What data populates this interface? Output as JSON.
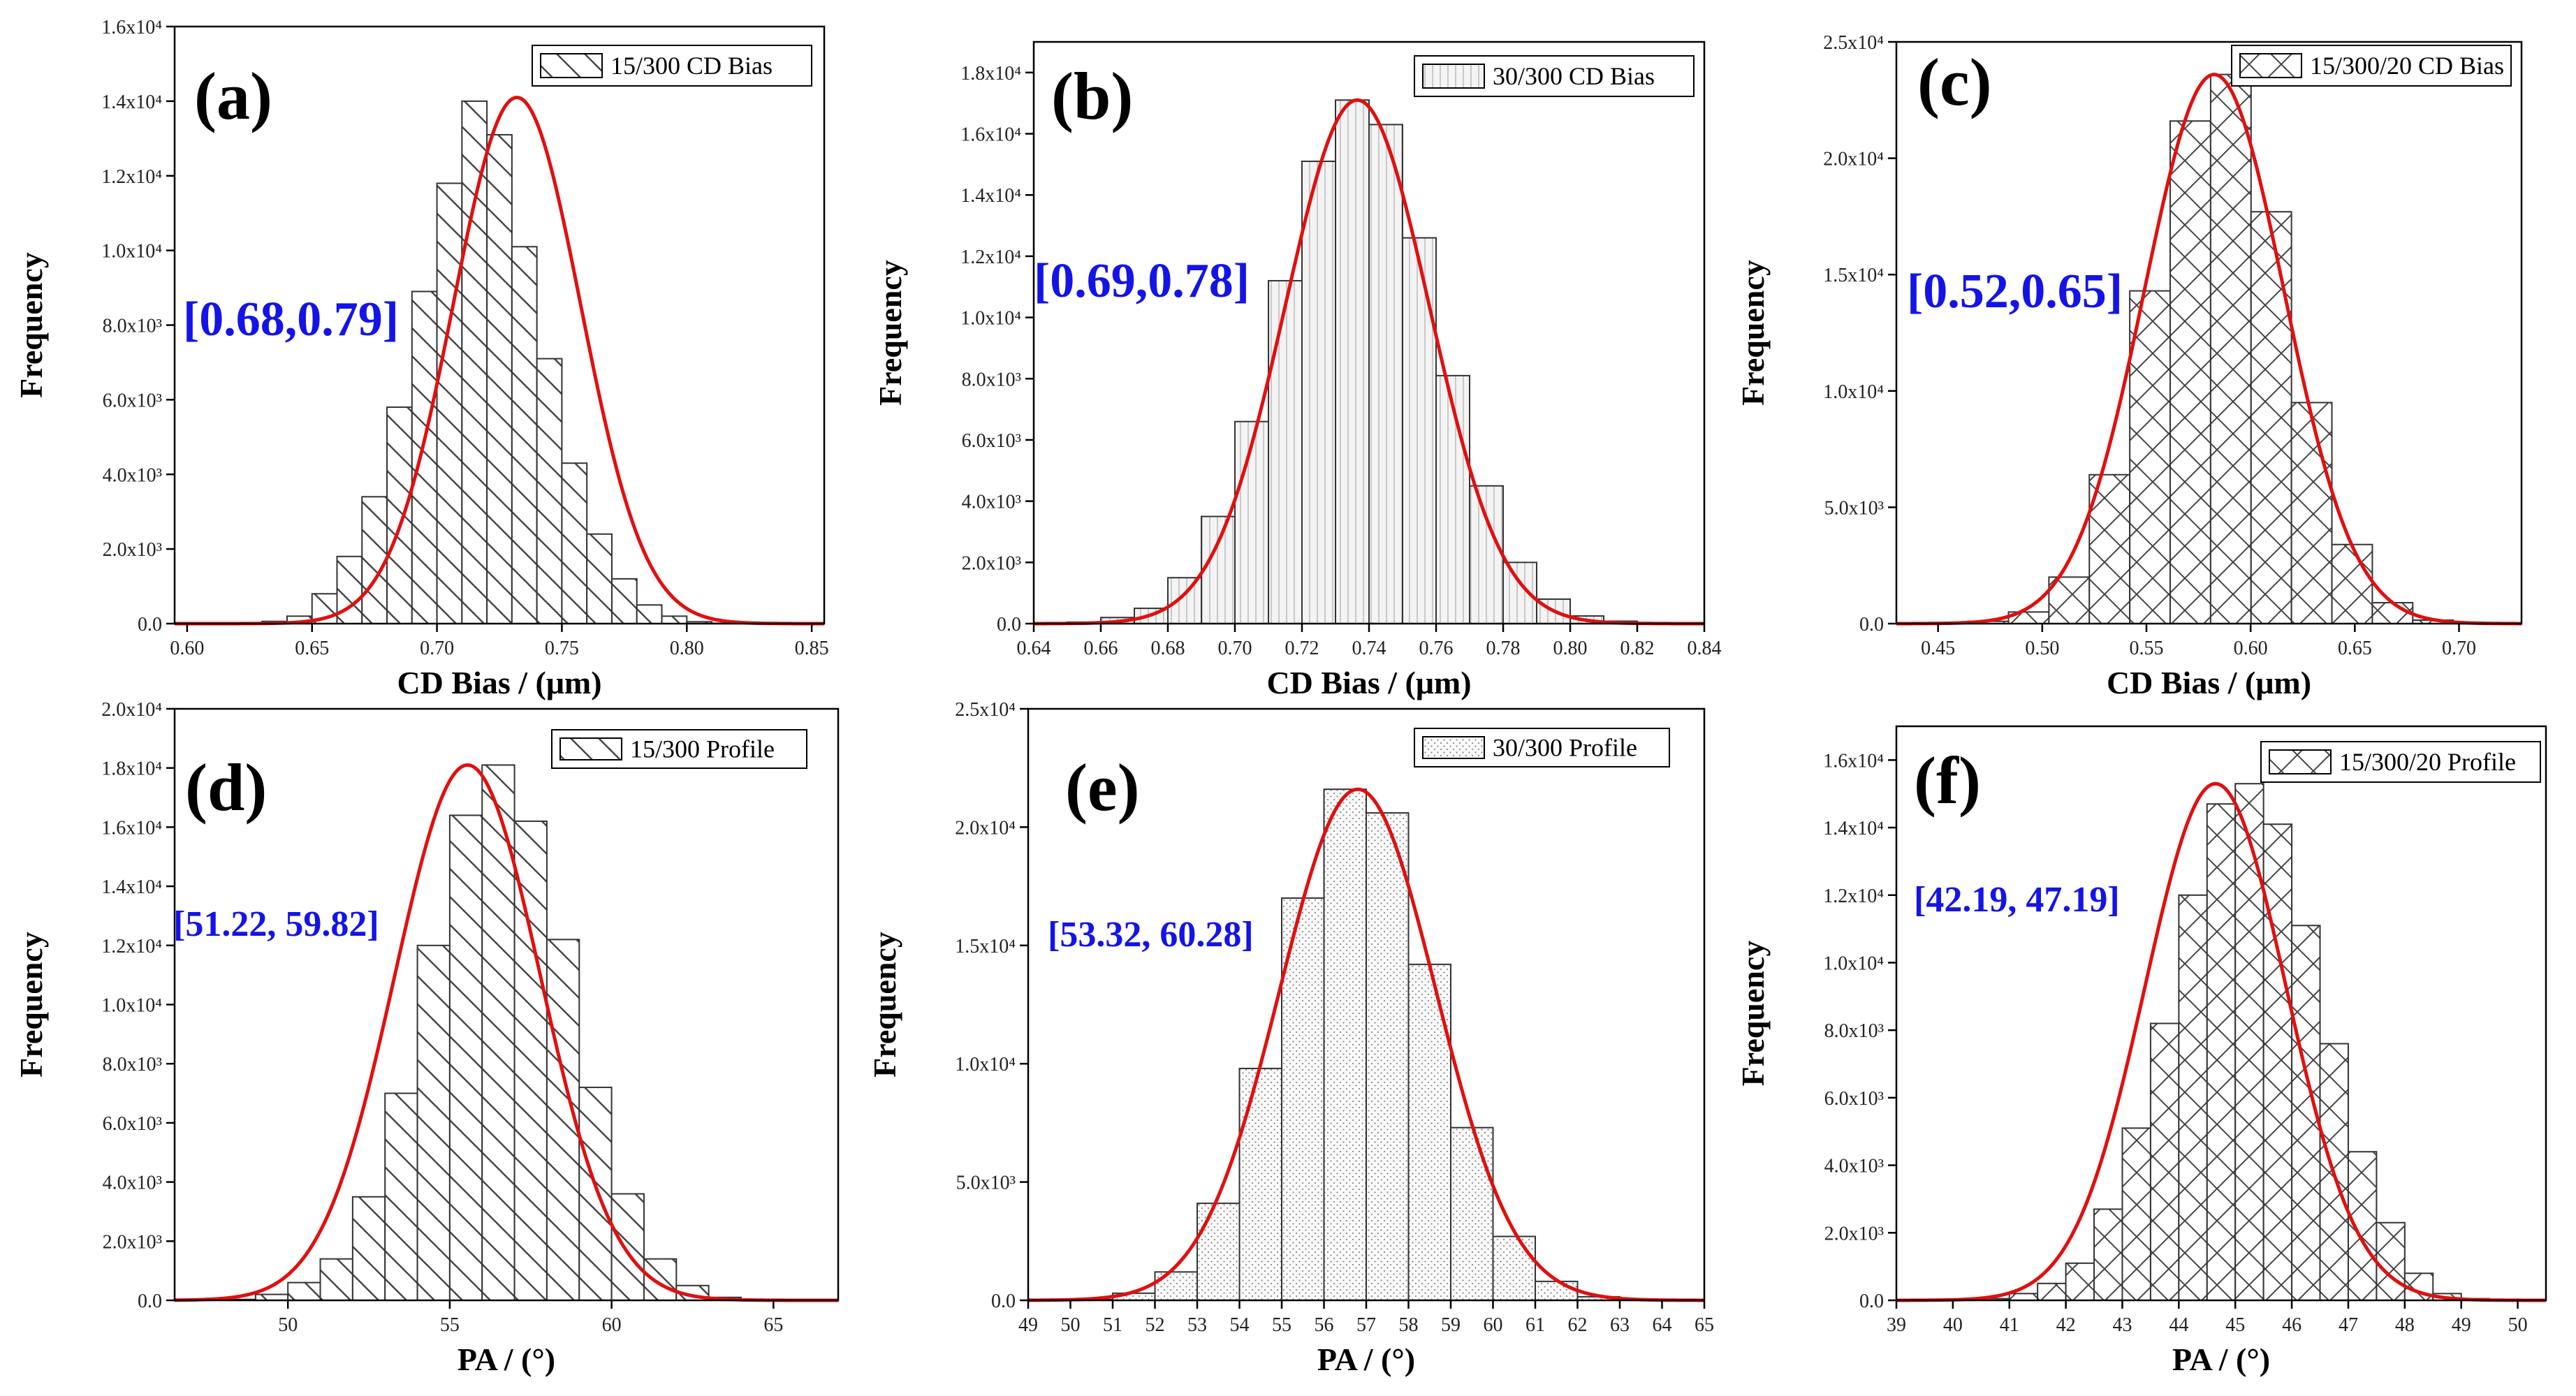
{
  "chart_data": [
    {
      "type": "bar",
      "panel": "(a)",
      "xlabel": "CD Bias / (μm)",
      "ylabel": "Frequency",
      "legend": "15/300 CD Bias",
      "legend_position": "top-right",
      "range_annotation": "[0.68,0.79]",
      "pattern": "diag-back",
      "bin_start": 0.6,
      "bin_width": 0.01,
      "values": [
        0,
        10,
        20,
        60,
        200,
        800,
        1800,
        3400,
        5800,
        8900,
        11800,
        14000,
        13100,
        10100,
        7100,
        4300,
        2400,
        1200,
        500,
        200,
        50,
        10,
        0,
        0,
        0
      ],
      "fit": {
        "mean": 0.732,
        "sd": 0.0255,
        "peak": 14100
      },
      "xlim": [
        0.595,
        0.855
      ],
      "ylim": [
        0,
        16000
      ],
      "xticks": [
        0.6,
        0.65,
        0.7,
        0.75,
        0.8,
        0.85
      ],
      "xtick_labels": [
        "0.60",
        "0.65",
        "0.70",
        "0.75",
        "0.80",
        "0.85"
      ],
      "yticks": [
        0,
        2000,
        4000,
        6000,
        8000,
        10000,
        12000,
        14000,
        16000
      ],
      "ytick_labels": [
        "0.0",
        "2.0x10³",
        "4.0x10³",
        "6.0x10³",
        "8.0x10³",
        "1.0x10⁴",
        "1.2x10⁴",
        "1.4x10⁴",
        "1.6x10⁴"
      ],
      "grid": false
    },
    {
      "type": "bar",
      "panel": "(b)",
      "xlabel": "CD Bias / (μm)",
      "ylabel": "Frequency",
      "legend": "30/300 CD Bias",
      "legend_position": "top-right",
      "range_annotation": "[0.69,0.78]",
      "pattern": "vertical",
      "bin_start": 0.65,
      "bin_width": 0.01,
      "values": [
        50,
        200,
        500,
        1500,
        3500,
        6600,
        11200,
        15100,
        17100,
        16300,
        12600,
        8100,
        4500,
        2000,
        800,
        250,
        80,
        20,
        5,
        0
      ],
      "fit": {
        "mean": 0.7365,
        "sd": 0.0215,
        "peak": 17100
      },
      "xlim": [
        0.64,
        0.84
      ],
      "ylim": [
        0,
        19000
      ],
      "xticks": [
        0.64,
        0.66,
        0.68,
        0.7,
        0.72,
        0.74,
        0.76,
        0.78,
        0.8,
        0.82,
        0.84
      ],
      "xtick_labels": [
        "0.64",
        "0.66",
        "0.68",
        "0.70",
        "0.72",
        "0.74",
        "0.76",
        "0.78",
        "0.80",
        "0.82",
        "0.84"
      ],
      "yticks": [
        0,
        2000,
        4000,
        6000,
        8000,
        10000,
        12000,
        14000,
        16000,
        18000
      ],
      "ytick_labels": [
        "0.0",
        "2.0x10³",
        "4.0x10³",
        "6.0x10³",
        "8.0x10³",
        "1.0x10⁴",
        "1.2x10⁴",
        "1.4x10⁴",
        "1.6x10⁴",
        "1.8x10⁴"
      ],
      "grid": false
    },
    {
      "type": "bar",
      "panel": "(c)",
      "xlabel": "CD Bias / (μm)",
      "ylabel": "Frequency",
      "legend": "15/300/20 CD Bias",
      "legend_position": "top-right",
      "range_annotation": "[0.52,0.65]",
      "pattern": "crosshatch",
      "bin_start": 0.445,
      "bin_width": 0.0194,
      "values": [
        20,
        100,
        500,
        2000,
        6400,
        14300,
        21600,
        23600,
        17700,
        9500,
        3400,
        900,
        150,
        30
      ],
      "fit": {
        "mean": 0.5825,
        "sd": 0.0335,
        "peak": 23600
      },
      "xlim": [
        0.43,
        0.73
      ],
      "ylim": [
        0,
        25000
      ],
      "xticks": [
        0.45,
        0.5,
        0.55,
        0.6,
        0.65,
        0.7
      ],
      "xtick_labels": [
        "0.45",
        "0.50",
        "0.55",
        "0.60",
        "0.65",
        "0.70"
      ],
      "yticks": [
        0,
        5000,
        10000,
        15000,
        20000,
        25000
      ],
      "ytick_labels": [
        "0.0",
        "5.0x10³",
        "1.0x10⁴",
        "1.5x10⁴",
        "2.0x10⁴",
        "2.5x10⁴"
      ],
      "grid": false
    },
    {
      "type": "bar",
      "panel": "(d)",
      "xlabel": "PA / (°)",
      "ylabel": "Frequency",
      "legend": "15/300 Profile",
      "legend_position": "top-right",
      "range_annotation": "[51.22, 59.82]",
      "pattern": "diag-back",
      "bin_start": 47.0,
      "bin_width": 1.0,
      "values": [
        0,
        30,
        200,
        600,
        1400,
        3500,
        7000,
        12000,
        16400,
        18100,
        16200,
        12200,
        7200,
        3600,
        1400,
        500,
        100,
        30,
        0
      ],
      "fit": {
        "mean": 55.55,
        "sd": 2.25,
        "peak": 18100
      },
      "xlim": [
        46.5,
        67.0
      ],
      "ylim": [
        0,
        20000
      ],
      "xticks": [
        50,
        55,
        60,
        65
      ],
      "xtick_labels": [
        "50",
        "55",
        "60",
        "65"
      ],
      "yticks": [
        0,
        2000,
        4000,
        6000,
        8000,
        10000,
        12000,
        14000,
        16000,
        18000,
        20000
      ],
      "ytick_labels": [
        "0.0",
        "2.0x10³",
        "4.0x10³",
        "6.0x10³",
        "8.0x10³",
        "1.0x10⁴",
        "1.2x10⁴",
        "1.4x10⁴",
        "1.6x10⁴",
        "1.8x10⁴",
        "2.0x10⁴"
      ],
      "grid": false
    },
    {
      "type": "bar",
      "panel": "(e)",
      "xlabel": "PA / (°)",
      "ylabel": "Frequency",
      "legend": "30/300 Profile",
      "legend_position": "top-right",
      "range_annotation": "[53.32, 60.28]",
      "pattern": "dots",
      "bin_start": 50.0,
      "bin_width": 1.0,
      "values": [
        30,
        300,
        1200,
        4100,
        9800,
        17000,
        21600,
        20600,
        14200,
        7300,
        2700,
        800,
        150,
        20
      ],
      "fit": {
        "mean": 56.8,
        "sd": 1.85,
        "peak": 21600
      },
      "xlim": [
        49,
        65
      ],
      "ylim": [
        0,
        25000
      ],
      "xticks": [
        49,
        50,
        51,
        52,
        53,
        54,
        55,
        56,
        57,
        58,
        59,
        60,
        61,
        62,
        63,
        64,
        65
      ],
      "xtick_labels": [
        "49",
        "50",
        "51",
        "52",
        "53",
        "54",
        "55",
        "56",
        "57",
        "58",
        "59",
        "60",
        "61",
        "62",
        "63",
        "64",
        "65"
      ],
      "yticks": [
        0,
        5000,
        10000,
        15000,
        20000,
        25000
      ],
      "ytick_labels": [
        "0.0",
        "5.0x10³",
        "1.0x10⁴",
        "1.5x10⁴",
        "2.0x10⁴",
        "2.5x10⁴"
      ],
      "grid": false
    },
    {
      "type": "bar",
      "panel": "(f)",
      "xlabel": "PA / (°)",
      "ylabel": "Frequency",
      "legend": "15/300/20 Profile",
      "legend_position": "top-right",
      "range_annotation": "[42.19, 47.19]",
      "pattern": "crosshatch",
      "bin_start": 40.5,
      "bin_width": 0.5,
      "values": [
        50,
        200,
        500,
        1100,
        2700,
        5100,
        8200,
        12000,
        14700,
        15300,
        14100,
        11100,
        7600,
        4400,
        2300,
        800,
        200,
        50
      ],
      "fit": {
        "mean": 44.65,
        "sd": 1.25,
        "peak": 15300
      },
      "xlim": [
        39,
        50.5
      ],
      "ylim": [
        0,
        17000
      ],
      "xticks": [
        39,
        40,
        41,
        42,
        43,
        44,
        45,
        46,
        47,
        48,
        49,
        50
      ],
      "xtick_labels": [
        "39",
        "40",
        "41",
        "42",
        "43",
        "44",
        "45",
        "46",
        "47",
        "48",
        "49",
        "50"
      ],
      "yticks": [
        0,
        2000,
        4000,
        6000,
        8000,
        10000,
        12000,
        14000,
        16000
      ],
      "ytick_labels": [
        "0.0",
        "2.0x10³",
        "4.0x10³",
        "6.0x10³",
        "8.0x10³",
        "1.0x10⁴",
        "1.2x10⁴",
        "1.4x10⁴",
        "1.6x10⁴"
      ],
      "grid": false
    }
  ],
  "colors": {
    "fit_curve": "#e01010",
    "range_label": "#1414e6",
    "bar_fill": "#ffffff",
    "bar_stroke": "#333333"
  }
}
